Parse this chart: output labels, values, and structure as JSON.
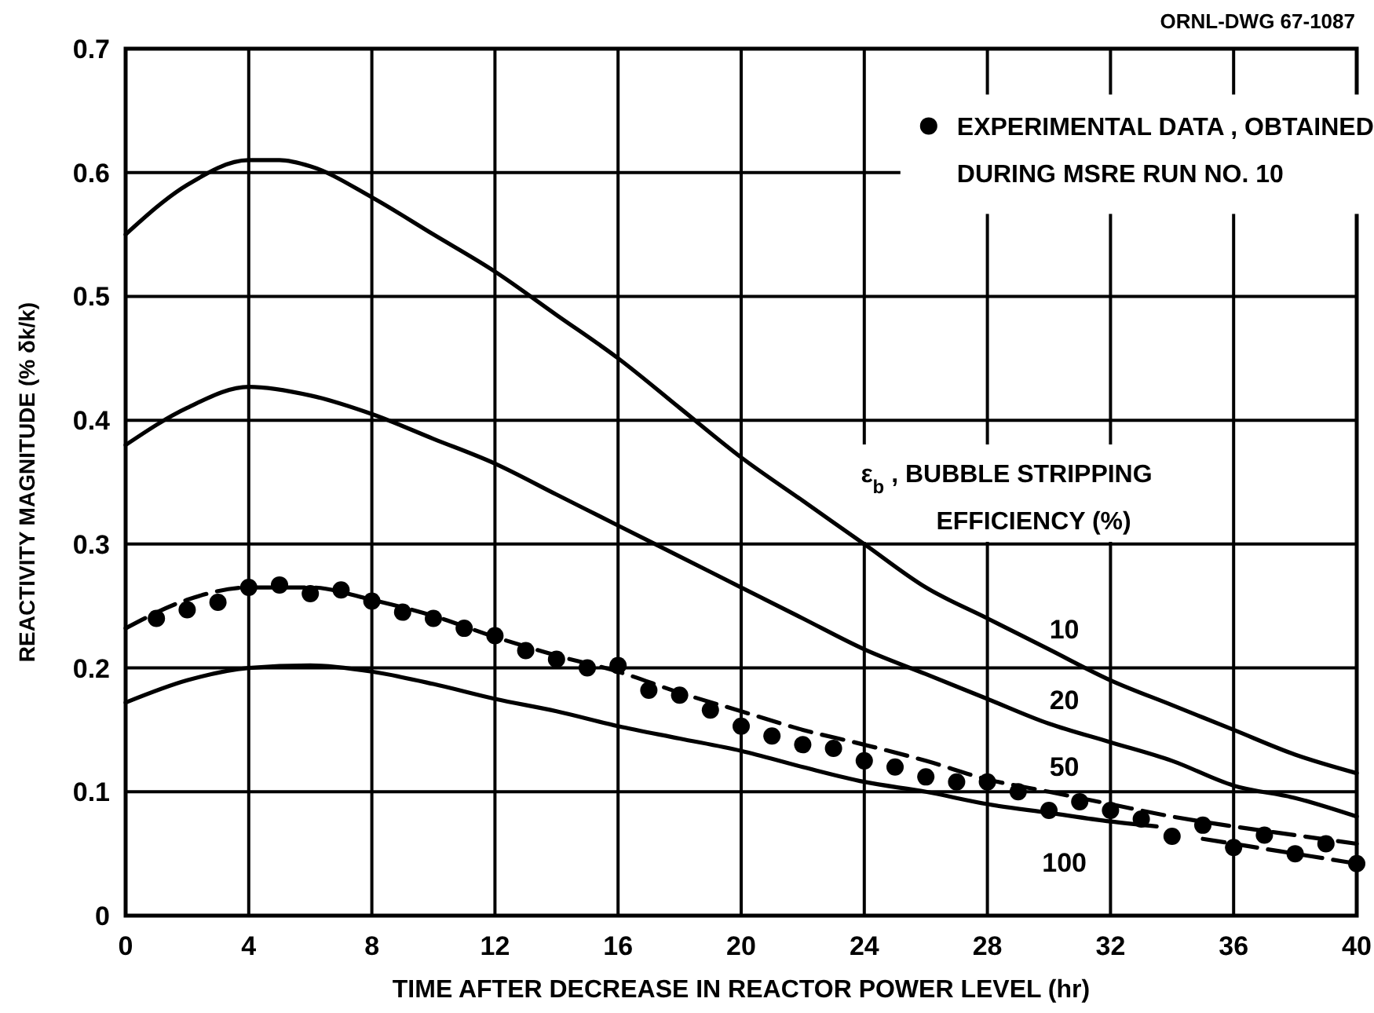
{
  "chart_data": {
    "type": "line",
    "xlabel": "TIME AFTER DECREASE IN REACTOR POWER LEVEL (hr)",
    "ylabel": "REACTIVITY MAGNITUDE (% δk/k)",
    "legend_title": "ε$_{b}$ , BUBBLE STRIPPING EFFICIENCY (%)",
    "annotations": [
      "ORNL-DWG 67-1087"
    ],
    "xlim": [
      0,
      40
    ],
    "ylim": [
      0,
      0.7
    ],
    "xticks": [
      0,
      4,
      8,
      12,
      16,
      20,
      24,
      28,
      32,
      36,
      40
    ],
    "yticks": [
      0,
      0.1,
      0.2,
      0.3,
      0.4,
      0.5,
      0.6,
      0.7
    ],
    "grid": true,
    "legend": "top right",
    "series": [
      {
        "name": "10",
        "color": "#000000",
        "line_style": "solid",
        "x": [
          0,
          2,
          4,
          5,
          6,
          8,
          10,
          12,
          14,
          16,
          18,
          20,
          22,
          24,
          26,
          28,
          30,
          32,
          34,
          36,
          38,
          40
        ],
        "values": [
          0.55,
          0.59,
          0.61,
          0.61,
          0.605,
          0.58,
          0.55,
          0.52,
          0.485,
          0.45,
          0.41,
          0.37,
          0.335,
          0.3,
          0.265,
          0.24,
          0.215,
          0.19,
          0.17,
          0.15,
          0.13,
          0.115
        ]
      },
      {
        "name": "20",
        "color": "#000000",
        "line_style": "solid",
        "x": [
          0,
          2,
          4,
          6,
          8,
          10,
          12,
          14,
          16,
          18,
          20,
          22,
          24,
          26,
          28,
          30,
          32,
          34,
          36,
          38,
          40
        ],
        "values": [
          0.38,
          0.41,
          0.427,
          0.42,
          0.405,
          0.385,
          0.365,
          0.34,
          0.315,
          0.29,
          0.265,
          0.24,
          0.215,
          0.195,
          0.175,
          0.155,
          0.14,
          0.125,
          0.105,
          0.095,
          0.08
        ]
      },
      {
        "name": "50",
        "color": "#000000",
        "line_style": "dashed",
        "x": [
          0,
          2,
          4,
          6,
          8,
          10,
          12,
          14,
          16,
          18,
          20,
          22,
          24,
          26,
          28,
          30,
          32,
          34,
          36,
          38,
          40
        ],
        "values": [
          0.232,
          0.255,
          0.265,
          0.265,
          0.255,
          0.242,
          0.225,
          0.21,
          0.197,
          0.18,
          0.165,
          0.15,
          0.138,
          0.125,
          0.11,
          0.1,
          0.09,
          0.08,
          0.072,
          0.065,
          0.058
        ]
      },
      {
        "name": "100",
        "color": "#000000",
        "line_style": "solid",
        "x": [
          0,
          2,
          4,
          6,
          8,
          10,
          12,
          14,
          16,
          18,
          20,
          22,
          24,
          26,
          28,
          30,
          32,
          33.5
        ],
        "values": [
          0.172,
          0.19,
          0.2,
          0.202,
          0.197,
          0.187,
          0.175,
          0.165,
          0.153,
          0.143,
          0.133,
          0.12,
          0.108,
          0.1,
          0.09,
          0.083,
          0.076,
          0.072
        ]
      },
      {
        "color": "#000000",
        "line_style": "dashed",
        "x": [
          35,
          36,
          37,
          38,
          39,
          40
        ],
        "values": [
          0.062,
          0.058,
          0.054,
          0.05,
          0.046,
          0.042
        ]
      },
      {
        "name": "EXPERIMENTAL DATA , OBTAINED DURING MSRE RUN NO. 10",
        "type": "scatter",
        "marker": "circle",
        "color": "#000000",
        "x": [
          1,
          2,
          3,
          4,
          5,
          6,
          7,
          8,
          9,
          10,
          11,
          12,
          13,
          14,
          15,
          16,
          17,
          18,
          19,
          20,
          21,
          22,
          23,
          24,
          25,
          26,
          27,
          28,
          29,
          30,
          31,
          32,
          33,
          34,
          35,
          36,
          37,
          38,
          39,
          40
        ],
        "values": [
          0.24,
          0.247,
          0.253,
          0.265,
          0.267,
          0.26,
          0.263,
          0.254,
          0.245,
          0.24,
          0.232,
          0.226,
          0.214,
          0.207,
          0.2,
          0.202,
          0.182,
          0.178,
          0.166,
          0.153,
          0.145,
          0.138,
          0.135,
          0.125,
          0.12,
          0.112,
          0.108,
          0.108,
          0.1,
          0.085,
          0.092,
          0.085,
          0.078,
          0.064,
          0.073,
          0.055,
          0.065,
          0.05,
          0.058,
          0.042
        ]
      }
    ]
  }
}
